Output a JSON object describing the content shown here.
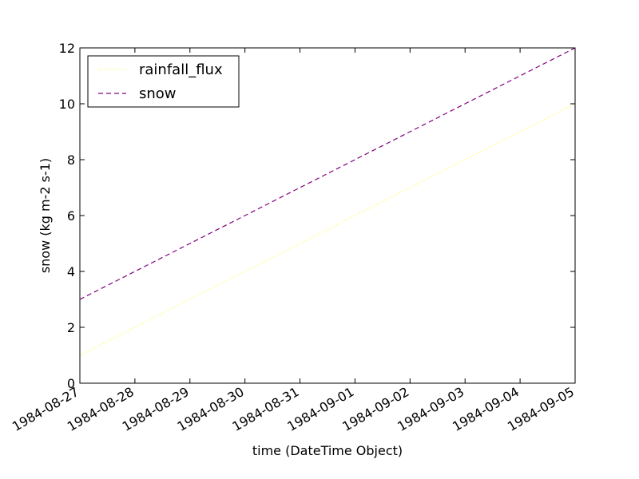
{
  "chart_data": {
    "type": "line",
    "title": "",
    "xlabel": "time (DateTime Object)",
    "ylabel": "snow (kg m-2 s-1)",
    "x": [
      "1984-08-27",
      "1984-08-28",
      "1984-08-29",
      "1984-08-30",
      "1984-08-31",
      "1984-09-01",
      "1984-09-02",
      "1984-09-03",
      "1984-09-04",
      "1984-09-05"
    ],
    "xticks": [
      "1984-08-27",
      "1984-08-28",
      "1984-08-29",
      "1984-08-30",
      "1984-08-31",
      "1984-09-01",
      "1984-09-02",
      "1984-09-03",
      "1984-09-04",
      "1984-09-05"
    ],
    "xlim": [
      "1984-08-27",
      "1984-09-05"
    ],
    "yticks": [
      0,
      2,
      4,
      6,
      8,
      10,
      12
    ],
    "ylim": [
      0,
      12
    ],
    "grid": false,
    "legend_position": "top-left",
    "series": [
      {
        "name": "rainfall_flux",
        "values": [
          1,
          2,
          3,
          4,
          5,
          6,
          7,
          8,
          9,
          10
        ],
        "color": "#ffff66",
        "style": "dotted"
      },
      {
        "name": "snow",
        "values": [
          3,
          4,
          5,
          6,
          7,
          8,
          9,
          10,
          11,
          12
        ],
        "color": "#800080",
        "style": "dashed"
      }
    ]
  }
}
